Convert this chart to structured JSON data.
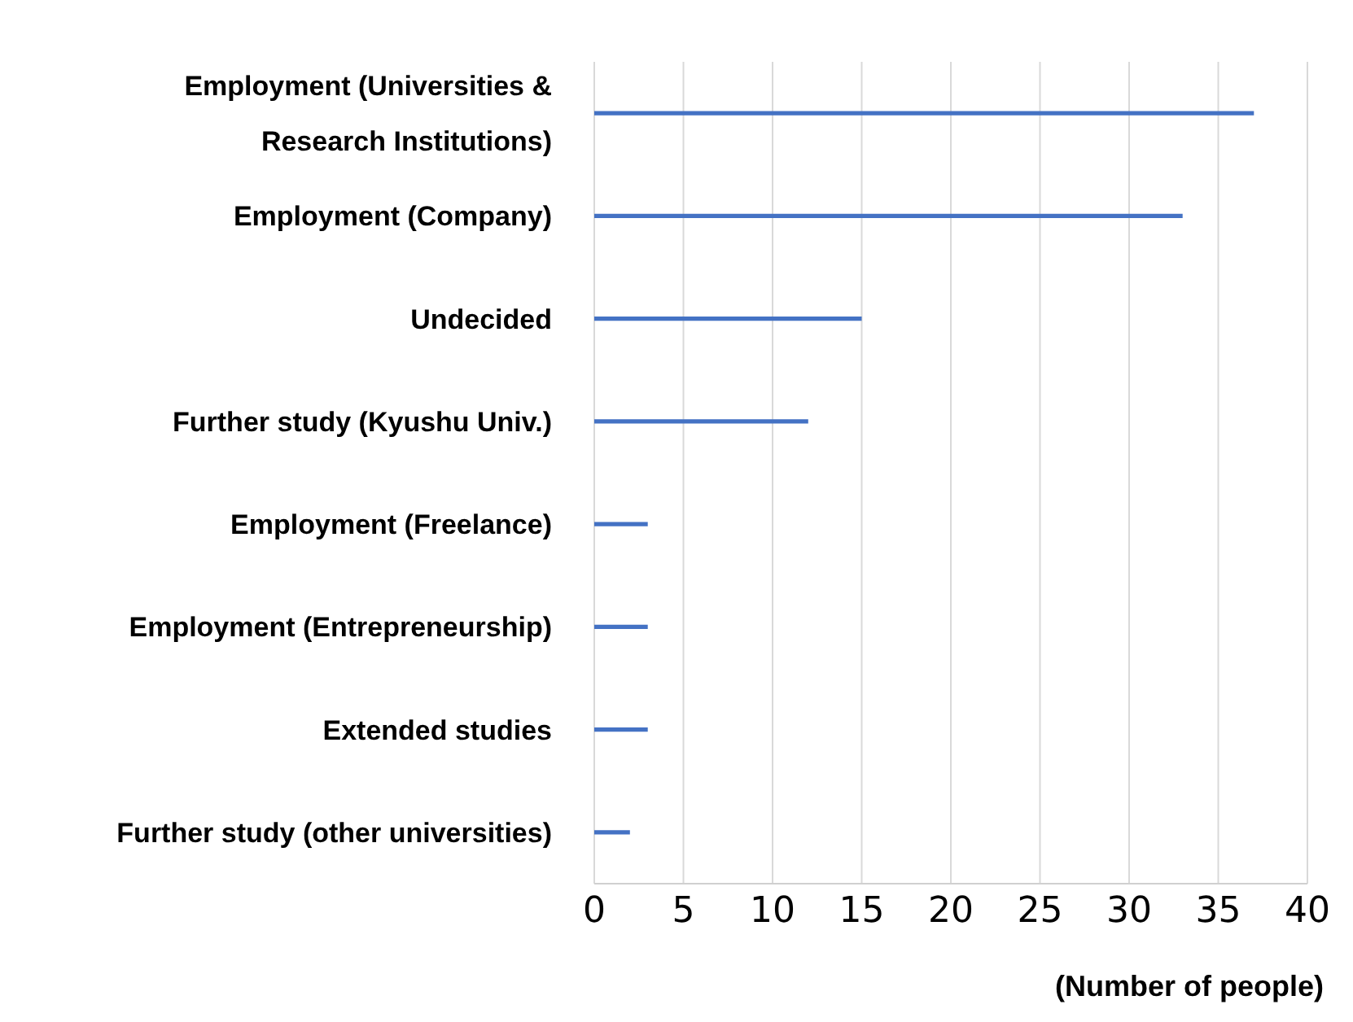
{
  "chart_data": {
    "type": "bar",
    "orientation": "horizontal",
    "xlabel": "(Number of people)",
    "categories": [
      "Employment (Universities & Research Institutions)",
      "Employment (Company)",
      "Undecided",
      "Further study (Kyushu Univ.)",
      "Employment (Freelance)",
      "Employment (Entrepreneurship)",
      "Extended studies",
      "Further study (other universities)"
    ],
    "values": [
      37,
      33,
      15,
      12,
      3,
      3,
      3,
      2
    ],
    "color": "#4472c4",
    "xlim": [
      0,
      40
    ],
    "xticks": [
      0,
      5,
      10,
      15,
      20,
      25,
      30,
      35,
      40
    ],
    "grid": "x",
    "legend": false
  }
}
